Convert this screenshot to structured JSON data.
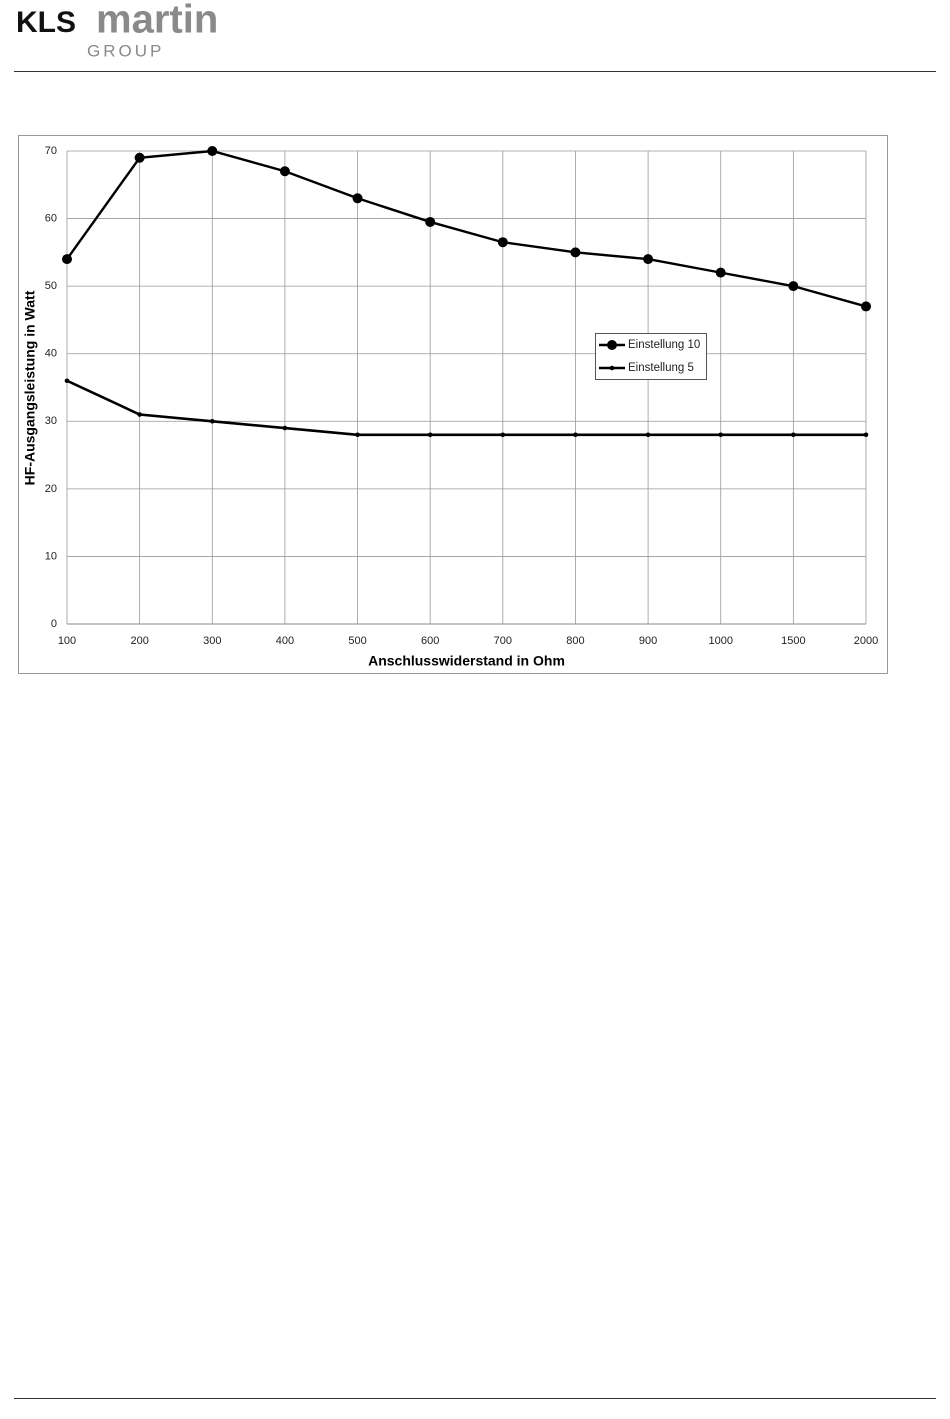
{
  "header": {
    "brand": "KLS",
    "name": "martin",
    "group": "GROUP"
  },
  "chart_data": {
    "type": "line",
    "x_label": "Anschlusswiderstand in Ohm",
    "y_label": "HF-Ausgangsleistung in Watt",
    "categories": [
      "100",
      "200",
      "300",
      "400",
      "500",
      "600",
      "700",
      "800",
      "900",
      "1000",
      "1500",
      "2000"
    ],
    "series": [
      {
        "name": "Einstellung 10",
        "color": "#000000",
        "values": [
          54,
          69,
          70,
          67,
          63,
          59.5,
          56.5,
          55,
          54,
          52,
          50,
          47
        ]
      },
      {
        "name": "Einstellung 5",
        "color": "#000000",
        "values": [
          36,
          31,
          30,
          29,
          28,
          28,
          28,
          28,
          28,
          28,
          28,
          28
        ]
      }
    ],
    "ylim": [
      0,
      70
    ],
    "yticks": [
      0,
      10,
      20,
      30,
      40,
      50,
      60,
      70
    ],
    "grid": true,
    "legend": "center-right"
  }
}
